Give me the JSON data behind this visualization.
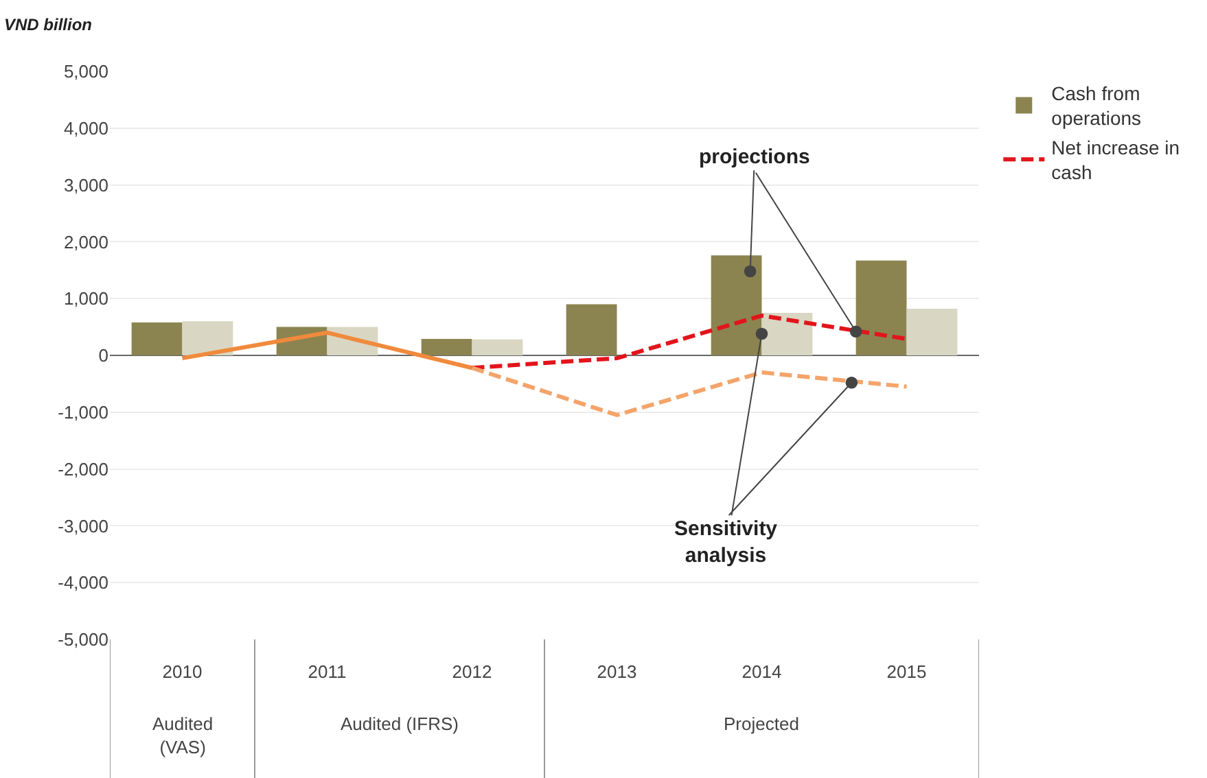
{
  "chart_data": {
    "type": "bar",
    "ylabel": "VND billion",
    "categories": [
      "2010",
      "2011",
      "2012",
      "2013",
      "2014",
      "2015"
    ],
    "series": [
      {
        "name": "Cash from operations",
        "color": "#8b8450",
        "values": [
          580,
          500,
          290,
          900,
          1760,
          1670
        ]
      },
      {
        "color": "#d9d6c3",
        "values": [
          600,
          500,
          280,
          null,
          750,
          820
        ]
      },
      {
        "type": "line",
        "color": "#f08a3c",
        "line_style": "solid",
        "values": [
          -50,
          400,
          -220,
          null,
          null,
          null
        ]
      },
      {
        "name": "Net increase in cash",
        "type": "line",
        "color": "#e3141b",
        "line_style": "dashed",
        "values": [
          null,
          null,
          -220,
          -50,
          700,
          290
        ]
      },
      {
        "type": "line",
        "color": "#f4a46a",
        "line_style": "dashed",
        "values": [
          null,
          null,
          -220,
          -1050,
          -300,
          -550
        ]
      }
    ],
    "ylim": [
      -5000,
      5000
    ],
    "yticks": [
      {
        "value": -5000,
        "label": "-5,000"
      },
      {
        "value": -4000,
        "label": "-4,000"
      },
      {
        "value": -3000,
        "label": "-3,000"
      },
      {
        "value": -2000,
        "label": "-2,000"
      },
      {
        "value": -1000,
        "label": "-1,000"
      },
      0,
      {
        "value": 1000,
        "label": "1,000"
      },
      {
        "value": 2000,
        "label": "2,000"
      },
      {
        "value": 3000,
        "label": "3,000"
      },
      {
        "value": 4000,
        "label": "4,000"
      },
      {
        "value": 5000,
        "label": "5,000"
      }
    ],
    "grid": "y",
    "legend": "top right",
    "marker": "none",
    "annotations": [
      {
        "text": "projections",
        "x": "2014",
        "y": 1480
      },
      {
        "text": "Sensitivity analysis",
        "x": "2014",
        "y": 380
      },
      "Audited (VAS)",
      "Audited (IFRS)",
      "Projected"
    ]
  }
}
